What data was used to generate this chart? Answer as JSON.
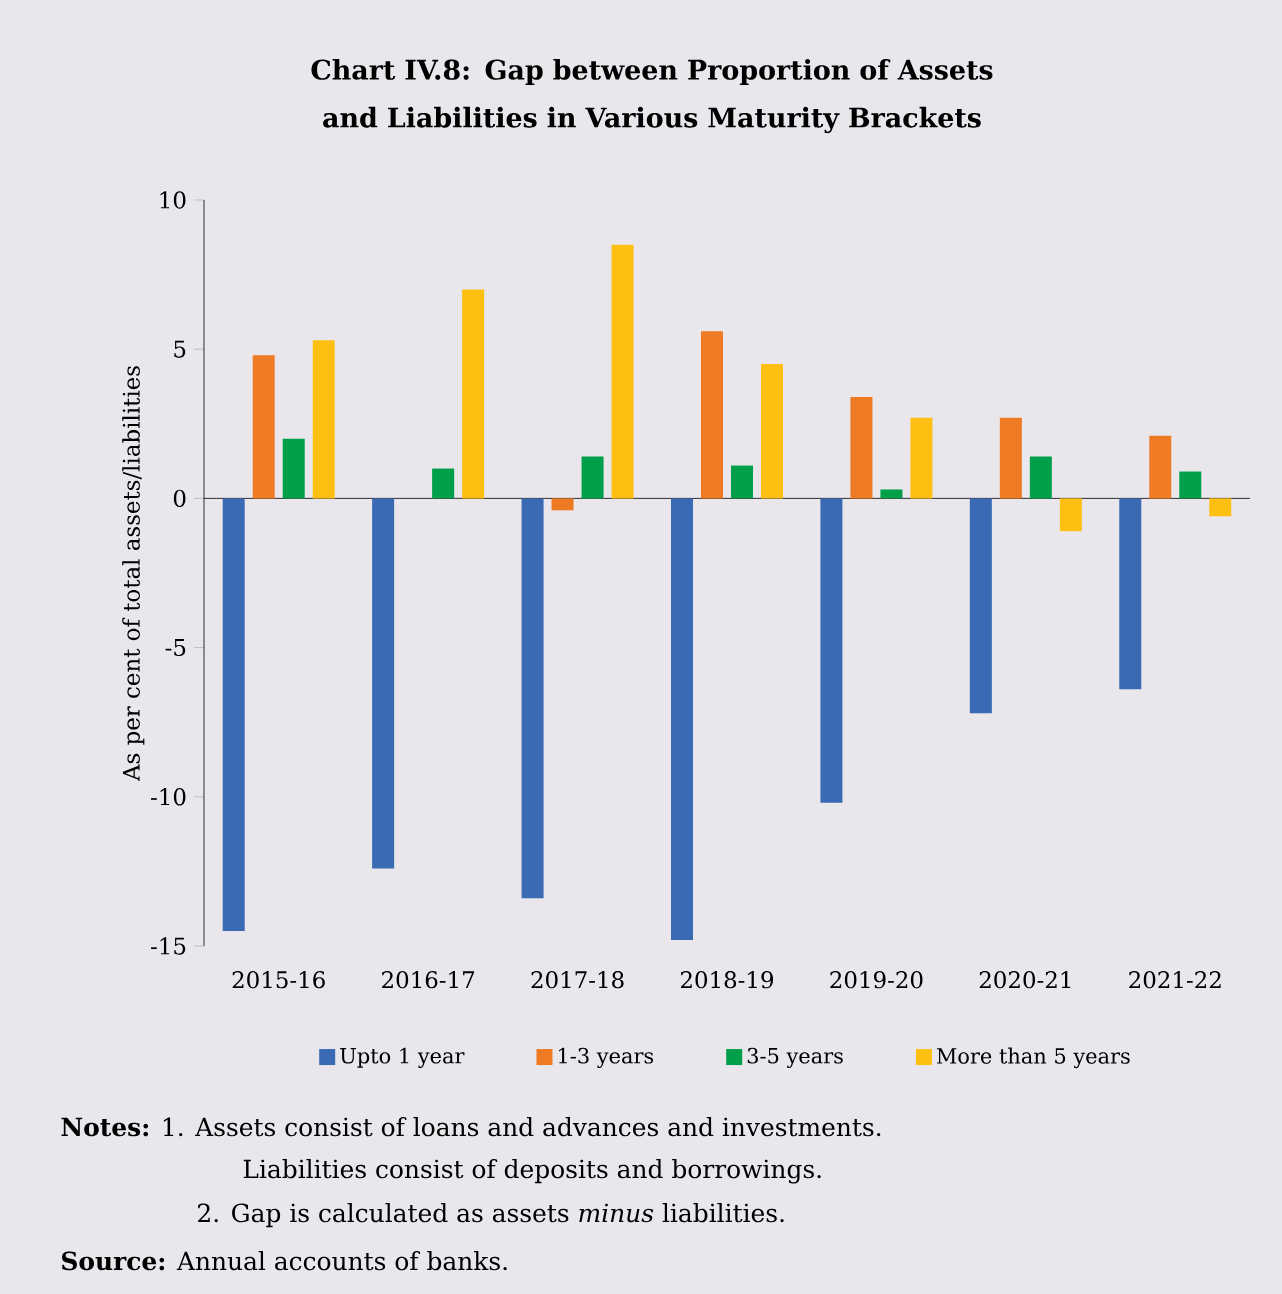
{
  "chart_data": {
    "type": "bar",
    "title": "Chart IV.8: Gap between Proportion of Assets and Liabilities in Various Maturity Brackets",
    "ylabel": "As per cent of total assets/liabilities",
    "categories": [
      "2015-16",
      "2016-17",
      "2017-18",
      "2018-19",
      "2019-20",
      "2020-21",
      "2021-22"
    ],
    "series": [
      {
        "name": "Upto 1 year",
        "color": "#3a6ab4",
        "values": [
          -14.5,
          -12.4,
          -13.4,
          -14.8,
          -10.2,
          -7.2,
          -6.4
        ]
      },
      {
        "name": "1-3 years",
        "color": "#ee7a24",
        "values": [
          4.8,
          null,
          -0.4,
          5.6,
          3.4,
          2.7,
          2.1
        ]
      },
      {
        "name": "3-5 years",
        "color": "#00a04b",
        "values": [
          2.0,
          1.0,
          1.4,
          1.1,
          0.3,
          1.4,
          0.9
        ]
      },
      {
        "name": "More than 5 years",
        "color": "#fdbf12",
        "values": [
          5.3,
          7.0,
          8.5,
          4.5,
          2.7,
          -1.1,
          -0.6
        ]
      }
    ],
    "ylim": [
      -15,
      10
    ],
    "yticks": [
      -15,
      -10,
      -5,
      0,
      5,
      10
    ],
    "legend": "bottom",
    "annotations": [
      "**Notes:** 1. Assets consist of loans and advances and investments.",
      "Liabilities consist of deposits and borrowings.",
      "2. Gap is calculated as assets *minus* liabilities.",
      "**Source:** Annual accounts of banks."
    ]
  }
}
